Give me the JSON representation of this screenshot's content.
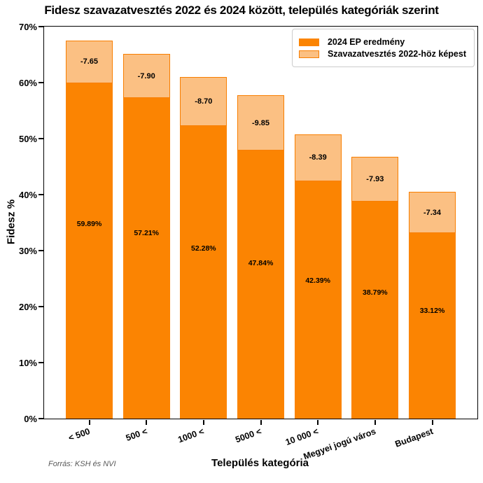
{
  "title": "Fidesz szavazatvesztés 2022 és 2024 között, település kategóriák szerint",
  "source_note": "Forrás: KSH és NVI",
  "colors": {
    "bar_solid": "#FB8402",
    "bar_light": "#FBC083",
    "bar_border": "#F87E00",
    "axis": "#000000",
    "legend_border": "#CCCCCC",
    "source_text": "#595959",
    "label_text": "#000000"
  },
  "chart_data": {
    "type": "bar",
    "stacked": true,
    "title": "Fidesz szavazatvesztés 2022 és 2024 között, település kategóriák szerint",
    "xlabel": "Település kategória",
    "ylabel": "Fidesz %",
    "ylim": [
      0,
      70
    ],
    "grid": false,
    "y_ticks": [
      {
        "value": 0,
        "label": "0%"
      },
      {
        "value": 10,
        "label": "10%"
      },
      {
        "value": 20,
        "label": "20%"
      },
      {
        "value": 30,
        "label": "30%"
      },
      {
        "value": 40,
        "label": "40%"
      },
      {
        "value": 50,
        "label": "50%"
      },
      {
        "value": 60,
        "label": "60%"
      },
      {
        "value": 70,
        "label": "70%"
      }
    ],
    "categories": [
      "< 500",
      "500 <",
      "1000 <",
      "5000 <",
      "10 000 <",
      "Megyei jogú város",
      "Budapest"
    ],
    "series": [
      {
        "name": "2024 EP eredmény",
        "values": [
          59.89,
          57.21,
          52.28,
          47.84,
          42.39,
          38.79,
          33.12
        ],
        "labels": [
          "59.89%",
          "57.21%",
          "52.28%",
          "47.84%",
          "42.39%",
          "38.79%",
          "33.12%"
        ]
      },
      {
        "name": "Szavazatvesztés 2022-höz képest",
        "values": [
          7.65,
          7.9,
          8.7,
          9.85,
          8.39,
          7.93,
          7.34
        ],
        "labels": [
          "-7.65",
          "-7.90",
          "-8.70",
          "-9.85",
          "-8.39",
          "-7.93",
          "-7.34"
        ]
      }
    ],
    "legend": {
      "position": "upper right"
    }
  }
}
